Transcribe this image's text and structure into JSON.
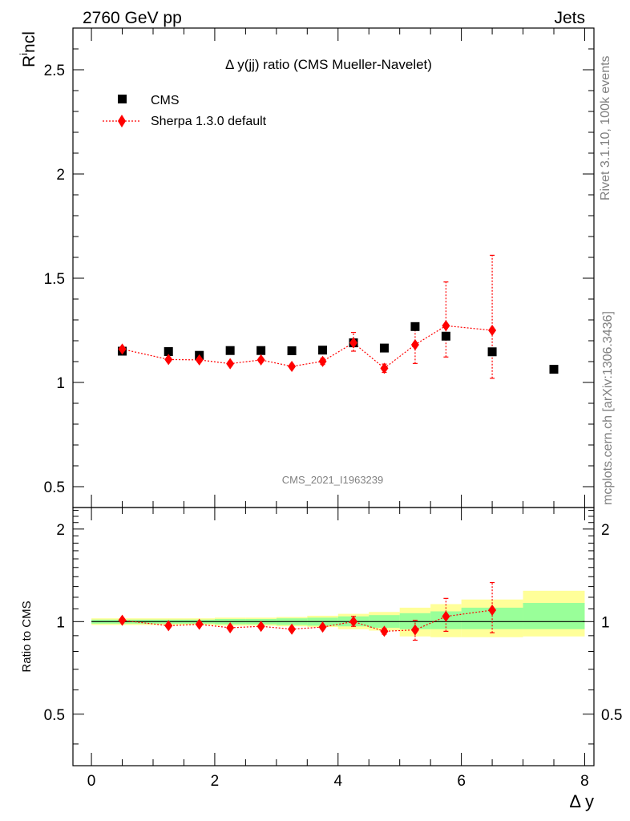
{
  "header": {
    "energy_label": "2760 GeV pp",
    "process_label": "Jets",
    "side_label_top": "Rivet 3.1.10,  100k events",
    "side_label_bottom": "mcplots.cern.ch [arXiv:1306.3436]"
  },
  "chart_data": [
    {
      "type": "scatter",
      "title": "Δ y(jj) ratio (CMS Mueller-Navelet)",
      "ylabel": "R^i ncl",
      "ylabel_main": "R",
      "ylabel_sup": "i",
      "ylabel_rest": "ncl",
      "xlabel": "Δ y",
      "watermark": "CMS_2021_I1963239",
      "xlim": [
        -0.3,
        8.15
      ],
      "ylim": [
        0.4,
        2.7
      ],
      "y_ticks": [
        0.5,
        1,
        1.5,
        2,
        2.5
      ],
      "y_tick_labels": [
        "0.5",
        "1",
        "1.5",
        "2",
        "2.5"
      ],
      "legend_position": "top-left",
      "legend": [
        "CMS",
        "Sherpa 1.3.0 default"
      ],
      "series": [
        {
          "name": "CMS",
          "marker": "square",
          "color": "#000000",
          "x": [
            0.5,
            1.25,
            1.75,
            2.25,
            2.75,
            3.25,
            3.75,
            4.25,
            4.75,
            5.25,
            5.75,
            6.5,
            7.5
          ],
          "y": [
            1.15,
            1.148,
            1.13,
            1.153,
            1.153,
            1.152,
            1.155,
            1.19,
            1.165,
            1.268,
            1.222,
            1.147,
            1.063
          ]
        },
        {
          "name": "Sherpa 1.3.0 default",
          "marker": "diamond",
          "line": "dotted",
          "color": "#ff0000",
          "x": [
            0.5,
            1.25,
            1.75,
            2.25,
            2.75,
            3.25,
            3.75,
            4.25,
            4.75,
            5.25,
            5.75,
            6.5
          ],
          "y": [
            1.16,
            1.11,
            1.108,
            1.09,
            1.108,
            1.077,
            1.101,
            1.19,
            1.068,
            1.181,
            1.272,
            1.25
          ],
          "yerr_low": [
            0.0,
            0.01,
            0.01,
            0.01,
            0.01,
            0.01,
            0.015,
            0.04,
            0.02,
            0.09,
            0.15,
            0.23
          ],
          "yerr_high": [
            0.0,
            0.01,
            0.01,
            0.01,
            0.01,
            0.01,
            0.015,
            0.05,
            0.02,
            0.09,
            0.21,
            0.36
          ]
        }
      ]
    },
    {
      "type": "scatter",
      "ylabel": "Ratio to CMS",
      "xlabel": "Δ y",
      "xlim": [
        -0.3,
        8.15
      ],
      "ylim": [
        0.34,
        2.35
      ],
      "x_ticks": [
        0,
        2,
        4,
        6,
        8
      ],
      "x_tick_labels": [
        "0",
        "2",
        "4",
        "6",
        "8"
      ],
      "y_ticks": [
        0.5,
        1,
        2
      ],
      "y_tick_labels": [
        "0.5",
        "1",
        "2"
      ],
      "reference_line": 1,
      "bands": {
        "x_edges": [
          0,
          1,
          1.5,
          2,
          2.5,
          3,
          3.5,
          4,
          4.5,
          5,
          5.5,
          6,
          7,
          8
        ],
        "yellow_low": [
          0.975,
          0.975,
          0.975,
          0.97,
          0.97,
          0.965,
          0.96,
          0.945,
          0.935,
          0.895,
          0.89,
          0.89,
          0.895
        ],
        "yellow_high": [
          1.025,
          1.025,
          1.025,
          1.03,
          1.03,
          1.035,
          1.045,
          1.06,
          1.075,
          1.11,
          1.14,
          1.18,
          1.26
        ],
        "green_low": [
          0.985,
          0.985,
          0.985,
          0.98,
          0.98,
          0.975,
          0.97,
          0.965,
          0.955,
          0.945,
          0.945,
          0.945,
          0.945
        ],
        "green_high": [
          1.015,
          1.015,
          1.015,
          1.02,
          1.02,
          1.025,
          1.03,
          1.04,
          1.05,
          1.065,
          1.08,
          1.11,
          1.15
        ]
      },
      "series": [
        {
          "name": "Sherpa 1.3.0 default",
          "marker": "diamond",
          "line": "dotted",
          "color": "#ff0000",
          "x": [
            0.5,
            1.25,
            1.75,
            2.25,
            2.75,
            3.25,
            3.75,
            4.25,
            4.75,
            5.25,
            5.75,
            6.5
          ],
          "y": [
            1.01,
            0.97,
            0.98,
            0.955,
            0.965,
            0.945,
            0.96,
            1.0,
            0.93,
            0.94,
            1.04,
            1.09
          ],
          "yerr_low": [
            0.0,
            0.01,
            0.01,
            0.01,
            0.01,
            0.01,
            0.015,
            0.035,
            0.02,
            0.07,
            0.11,
            0.17
          ],
          "yerr_high": [
            0.0,
            0.01,
            0.01,
            0.01,
            0.01,
            0.01,
            0.015,
            0.04,
            0.02,
            0.07,
            0.15,
            0.25
          ]
        }
      ]
    }
  ]
}
